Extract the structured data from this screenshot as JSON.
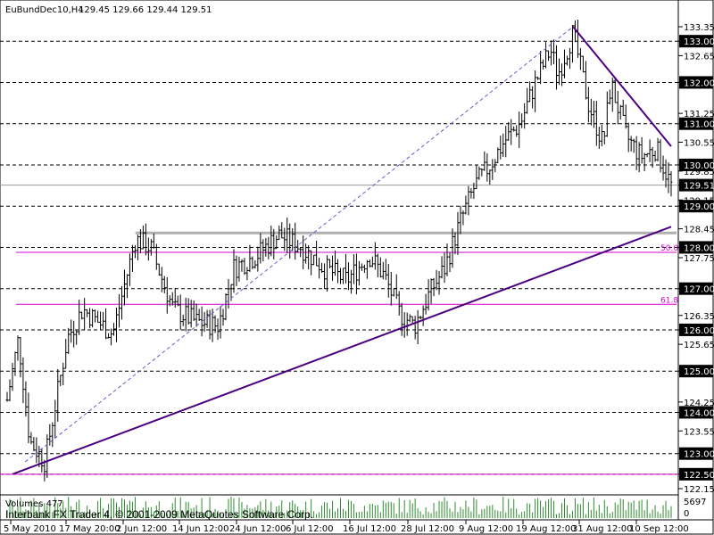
{
  "header": {
    "symbol": "EuBundDec10,H4",
    "ohlc": "129.45 129.66 129.44 129.51"
  },
  "volume_label": "Volumes 477",
  "volume_axis": {
    "max_label": "5697",
    "min_label": "0"
  },
  "watermark": "Interbank FX Trader 4, © 2001-2009 MetaQuotes Software Corp.",
  "colors": {
    "background": "#ffffff",
    "candle": "#000000",
    "trendline": "#4b0082",
    "fib": "#d400d4",
    "resistance": "#b0b0b0",
    "label_box": "#000000",
    "current_price_box": "#000000"
  },
  "chart_data": {
    "type": "candlestick",
    "ylim": [
      122.1,
      133.6
    ],
    "price_ticks": [
      "133.35",
      "133.00",
      "132.65",
      "132.00",
      "131.25",
      "131.00",
      "130.55",
      "130.00",
      "129.85",
      "129.51",
      "129.15",
      "129.00",
      "128.45",
      "128.00",
      "127.75",
      "127.00",
      "126.35",
      "126.00",
      "125.65",
      "125.00",
      "124.25",
      "124.00",
      "123.55",
      "123.00",
      "122.50",
      "122.15"
    ],
    "boxed_levels": [
      "133.00",
      "132.00",
      "131.00",
      "130.00",
      "129.51",
      "129.00",
      "128.00",
      "127.00",
      "126.00",
      "125.00",
      "124.00",
      "123.00",
      "122.50"
    ],
    "x_ticks": [
      "5 May 2010",
      "17 May 20:00",
      "2 Jun 12:00",
      "14 Jun 12:00",
      "24 Jun 12:00",
      "6 Jul 12:00",
      "16 Jul 12:00",
      "28 Jul 12:00",
      "9 Aug 12:00",
      "19 Aug 12:00",
      "31 Aug 12:00",
      "10 Sep 12:00"
    ],
    "close_anchors": [
      {
        "t": 0,
        "p": 124.3
      },
      {
        "t": 1.5,
        "p": 125.8
      },
      {
        "t": 3,
        "p": 123.3
      },
      {
        "t": 5,
        "p": 122.8
      },
      {
        "t": 8,
        "p": 125.8
      },
      {
        "t": 10,
        "p": 126.5
      },
      {
        "t": 12,
        "p": 126.2
      },
      {
        "t": 14,
        "p": 125.9
      },
      {
        "t": 17,
        "p": 128.2
      },
      {
        "t": 19,
        "p": 128.0
      },
      {
        "t": 22,
        "p": 126.5
      },
      {
        "t": 25,
        "p": 126.2
      },
      {
        "t": 28,
        "p": 126.1
      },
      {
        "t": 30,
        "p": 127.5
      },
      {
        "t": 33,
        "p": 127.8
      },
      {
        "t": 36,
        "p": 128.3
      },
      {
        "t": 39,
        "p": 128.0
      },
      {
        "t": 42,
        "p": 127.5
      },
      {
        "t": 45,
        "p": 127.2
      },
      {
        "t": 48,
        "p": 127.8
      },
      {
        "t": 50,
        "p": 127.3
      },
      {
        "t": 52,
        "p": 126.4
      },
      {
        "t": 54,
        "p": 126.1
      },
      {
        "t": 56,
        "p": 126.9
      },
      {
        "t": 58,
        "p": 127.5
      },
      {
        "t": 60,
        "p": 128.6
      },
      {
        "t": 62,
        "p": 129.5
      },
      {
        "t": 64,
        "p": 130.0
      },
      {
        "t": 66,
        "p": 130.6
      },
      {
        "t": 68,
        "p": 131.0
      },
      {
        "t": 70,
        "p": 132.0
      },
      {
        "t": 72,
        "p": 132.8
      },
      {
        "t": 73,
        "p": 132.2
      },
      {
        "t": 75,
        "p": 133.2
      },
      {
        "t": 77,
        "p": 131.5
      },
      {
        "t": 79,
        "p": 130.5
      },
      {
        "t": 80,
        "p": 132.0
      },
      {
        "t": 82,
        "p": 130.7
      },
      {
        "t": 84,
        "p": 130.2
      },
      {
        "t": 86,
        "p": 130.4
      },
      {
        "t": 88,
        "p": 129.5
      }
    ],
    "resistance_level": 128.35,
    "fib_levels": [
      {
        "label": "50.0",
        "value": 127.88
      },
      {
        "label": "61.8",
        "value": 126.62
      }
    ],
    "trendlines": [
      {
        "name": "",
        "from": {
          "t": 0.7,
          "p": 122.5
        },
        "to": {
          "t": 88,
          "p": 128.5
        }
      },
      {
        "name": "",
        "from": {
          "t": 75,
          "p": 133.35
        },
        "to": {
          "t": 88,
          "p": 130.45
        }
      }
    ],
    "projection_line": {
      "from": {
        "t": 2.4,
        "p": 122.8
      },
      "to": {
        "t": 75,
        "p": 133.35
      }
    },
    "last_price": 129.51
  }
}
